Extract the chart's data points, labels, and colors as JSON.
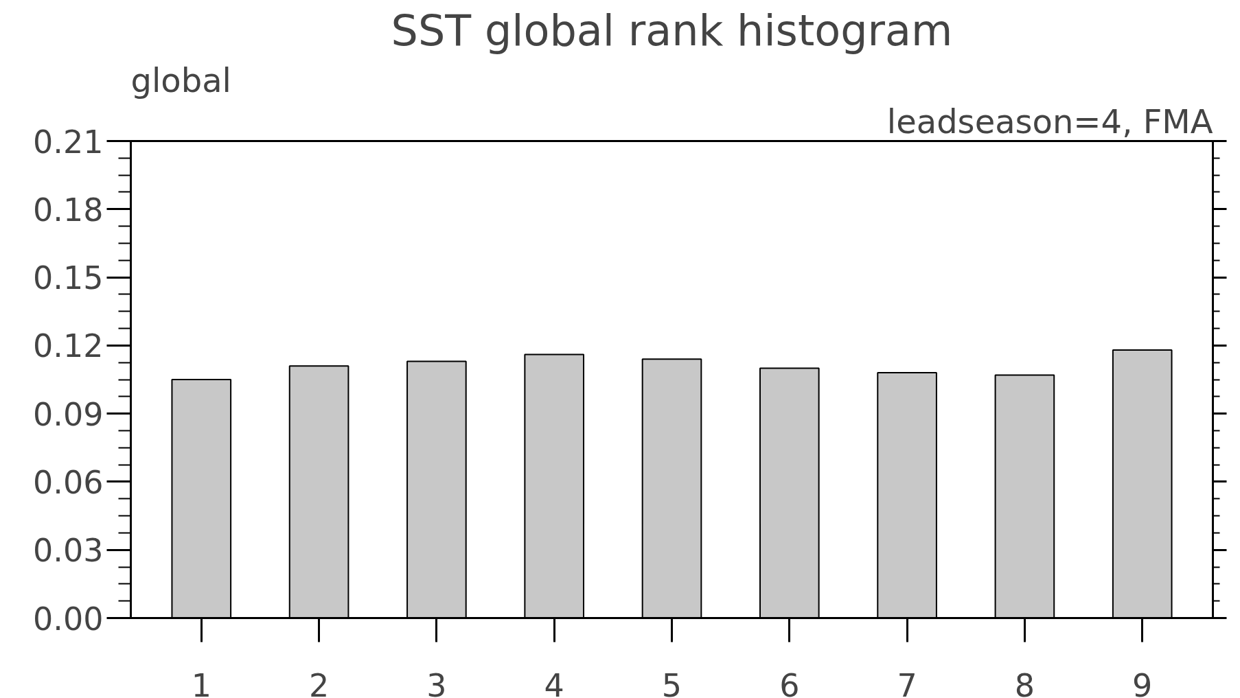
{
  "chart_data": {
    "type": "bar",
    "title": "SST global rank histogram",
    "annotations": [
      "global",
      "leadseason=4, FMA"
    ],
    "categories": [
      "1",
      "2",
      "3",
      "4",
      "5",
      "6",
      "7",
      "8",
      "9"
    ],
    "values": [
      0.105,
      0.111,
      0.113,
      0.116,
      0.114,
      0.11,
      0.108,
      0.107,
      0.118
    ],
    "color": "#c8c8c8",
    "ylim": [
      0,
      0.21
    ],
    "yticks": [
      {
        "value": 0,
        "label": "0.00"
      },
      0.03,
      0.06,
      0.09,
      0.12,
      0.15,
      0.18,
      0.21
    ],
    "grid": false
  }
}
